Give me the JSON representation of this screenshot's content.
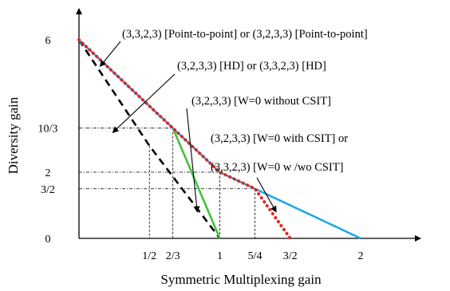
{
  "chart_data": {
    "type": "line",
    "title": "",
    "xlabel": "Symmetric Multiplexing gain",
    "ylabel": "Diversity gain",
    "xlim": [
      0,
      2.13
    ],
    "ylim": [
      0,
      6.9
    ],
    "x_ticks": [
      {
        "value": 0.5,
        "label": "1/2"
      },
      {
        "value": 0.6667,
        "label": "2/3"
      },
      {
        "value": 1,
        "label": "1"
      },
      {
        "value": 1.25,
        "label": "5/4"
      },
      {
        "value": 1.5,
        "label": "3/2"
      },
      {
        "value": 2,
        "label": "2"
      }
    ],
    "y_ticks": [
      {
        "value": 0,
        "label": "0"
      },
      {
        "value": 1.5,
        "label": "3/2"
      },
      {
        "value": 2,
        "label": "2"
      },
      {
        "value": 3.3333,
        "label": "10/3"
      },
      {
        "value": 6,
        "label": "6"
      }
    ],
    "guides": [
      {
        "x": 0.6667,
        "y": 3.3333
      },
      {
        "x": 1,
        "y": 2
      },
      {
        "x": 1.25,
        "y": 1.5
      }
    ],
    "series": [
      {
        "style": "dashed-black",
        "color": "#000000",
        "points": [
          [
            0,
            6
          ],
          [
            0.5,
            2.8
          ],
          [
            1,
            0
          ]
        ]
      },
      {
        "style": "solid-green",
        "color": "#44c23a",
        "points": [
          [
            0.6667,
            3.3333
          ],
          [
            1,
            0
          ]
        ]
      },
      {
        "style": "solid-blue",
        "color": "#1fa8e6",
        "points": [
          [
            0,
            6
          ],
          [
            0.6667,
            3.3333
          ],
          [
            1,
            2
          ],
          [
            1.25,
            1.5
          ],
          [
            2,
            0
          ]
        ]
      },
      {
        "style": "dotted-red",
        "color": "#e8231c",
        "points": [
          [
            0,
            6
          ],
          [
            0.6667,
            3.3333
          ],
          [
            1,
            2
          ],
          [
            1.25,
            1.5
          ],
          [
            1.5,
            0
          ]
        ]
      }
    ],
    "annotations": [
      {
        "text": "(3,3,2,3) [Point-to-point] or (3,2,3,3) [Point-to-point]",
        "target": [
          0.15,
          5.2
        ]
      },
      {
        "text": "(3,2,3,3) [HD] or (3,3,2,3) [HD]",
        "target": [
          0.24,
          3.2
        ]
      },
      {
        "text": "(3,2,3,3) [W=0 without CSIT]",
        "target": [
          0.84,
          0.8
        ]
      },
      {
        "text": "(3,2,3,3) [W=0 with CSIT] or",
        "target": null
      },
      {
        "text": "(3,3,2,3) [W=0 w /wo  CSIT]",
        "target": [
          1.4,
          0.8
        ]
      }
    ]
  }
}
